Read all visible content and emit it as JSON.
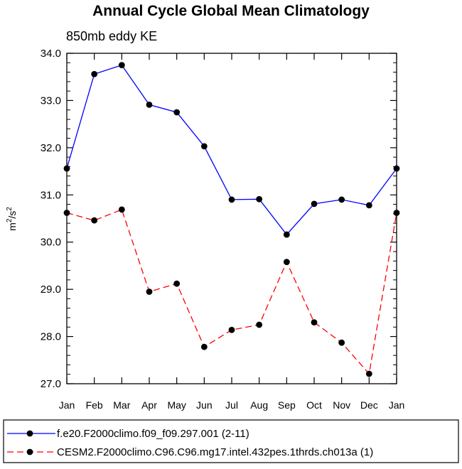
{
  "chart_data": {
    "type": "line",
    "title": "Annual Cycle Global Mean Climatology",
    "subtitle": "850mb eddy KE",
    "xlabel": "",
    "ylabel_base": "m",
    "ylabel_sup1": "2",
    "ylabel_mid": "/s",
    "ylabel_sup2": "2",
    "ylim": [
      27.0,
      34.0
    ],
    "yticks": [
      27.0,
      28.0,
      29.0,
      30.0,
      31.0,
      32.0,
      33.0,
      34.0
    ],
    "ytick_labels": [
      "27.0",
      "28.0",
      "29.0",
      "30.0",
      "31.0",
      "32.0",
      "33.0",
      "34.0"
    ],
    "categories": [
      "Jan",
      "Feb",
      "Mar",
      "Apr",
      "May",
      "Jun",
      "Jul",
      "Aug",
      "Sep",
      "Oct",
      "Nov",
      "Dec",
      "Jan"
    ],
    "legend_position": "bottom",
    "series": [
      {
        "name": "f.e20.F2000climo.f09_f09.297.001 (2-11)",
        "color": "#0000ff",
        "dash": "solid",
        "values": [
          31.56,
          33.56,
          33.75,
          32.91,
          32.75,
          32.03,
          30.9,
          30.91,
          30.16,
          30.81,
          30.9,
          30.78,
          31.56
        ]
      },
      {
        "name": "CESM2.F2000climo.C96.C96.mg17.intel.432pes.1thrds.ch013a (1)",
        "color": "#ff0000",
        "dash": "dashed",
        "values": [
          30.62,
          30.46,
          30.69,
          28.95,
          29.12,
          27.78,
          28.14,
          28.25,
          29.58,
          28.3,
          27.87,
          27.21,
          30.62
        ]
      }
    ]
  }
}
